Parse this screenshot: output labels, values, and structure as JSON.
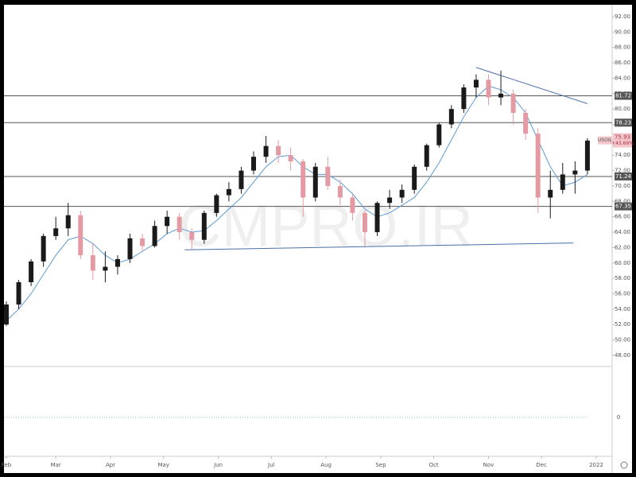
{
  "chart_data": {
    "type": "candlestick",
    "symbol": "USOIL",
    "change_label": "+43.69%",
    "last_price": 75.93,
    "watermark": "CMPRO.IR",
    "x": [
      0,
      7,
      14,
      21,
      28,
      35,
      42,
      49,
      56,
      63,
      70,
      77,
      84,
      91,
      98,
      105,
      112,
      119,
      126,
      133,
      140,
      147,
      154,
      161,
      168,
      175,
      182,
      189,
      196,
      203,
      210,
      217,
      224,
      231,
      238,
      245,
      252,
      259,
      266,
      273,
      280,
      287,
      294,
      301,
      308,
      315,
      322,
      329
    ],
    "open": [
      52,
      54.6,
      57.5,
      60.2,
      63.5,
      64.5,
      66.2,
      61,
      59,
      59.5,
      60.5,
      63.2,
      62.2,
      64.8,
      66,
      64,
      63,
      66.5,
      68.8,
      69.6,
      72,
      73.8,
      75.2,
      74,
      73.2,
      68.5,
      72.5,
      70,
      68.5,
      66.5,
      64,
      67.8,
      68.5,
      69.5,
      72.5,
      75.3,
      78,
      80,
      82.8,
      83.8,
      81.5,
      82,
      79.5,
      76.8,
      68.5,
      69.5,
      71.5,
      72
    ],
    "high": [
      55,
      57.8,
      60.5,
      63.8,
      66,
      67.8,
      66.8,
      62.5,
      61.5,
      61,
      63.8,
      63.8,
      65.5,
      66.8,
      66.5,
      64.5,
      66.8,
      69,
      70.5,
      72.5,
      74.5,
      76.5,
      76,
      75,
      73.5,
      73,
      73.8,
      70.8,
      69,
      66.8,
      68,
      69.5,
      70.2,
      72.8,
      75.5,
      78.2,
      80.5,
      83.2,
      84.5,
      84.5,
      85,
      82.5,
      80,
      77.5,
      72,
      73,
      73.2,
      76.2
    ],
    "low": [
      51.8,
      54,
      57,
      59.5,
      63,
      63.5,
      60.5,
      57.8,
      57.5,
      58.5,
      60,
      61.5,
      62,
      63.8,
      63,
      61.8,
      62.5,
      66,
      68,
      69,
      71.5,
      73,
      73,
      72,
      66,
      68,
      69.5,
      67.5,
      65.5,
      62,
      63.5,
      67,
      67.8,
      69,
      72,
      75,
      77.5,
      79.5,
      81.5,
      80.5,
      80.5,
      78,
      76,
      66.5,
      65.8,
      69,
      69,
      71.5
    ],
    "close": [
      54.6,
      57.5,
      60.2,
      63.5,
      64.5,
      66.2,
      61,
      59,
      59.5,
      60.5,
      63.2,
      62.2,
      64.8,
      66,
      64,
      63,
      66.5,
      68.8,
      69.6,
      72,
      73.8,
      75.2,
      74,
      73.2,
      68.5,
      72.5,
      70,
      68.5,
      66.5,
      64,
      67.8,
      68.5,
      69.5,
      72.5,
      75.3,
      78,
      80,
      82.8,
      83.8,
      81.5,
      82,
      79.5,
      76.8,
      68.5,
      69.5,
      71.5,
      72,
      75.9
    ],
    "up_color": "#1a1a1a",
    "down_color": "#e39aa3",
    "moving_average": {
      "color": "#5b9bd5",
      "values": [
        52.5,
        54,
        56,
        58.5,
        61,
        63,
        63.5,
        62.5,
        61,
        60,
        60.5,
        61.5,
        62.5,
        63.8,
        64.5,
        64,
        64.2,
        65.5,
        67,
        68.5,
        70.5,
        72.5,
        73.8,
        74,
        72.5,
        71.5,
        71.5,
        70.5,
        69,
        67,
        66,
        66.5,
        67.5,
        68.5,
        70.5,
        73,
        76,
        79,
        81.5,
        83,
        82.5,
        81.5,
        79.5,
        76,
        72.5,
        70,
        70.5,
        71.5
      ]
    },
    "levels": {
      "color": "#555555",
      "values": [
        81.72,
        78.23,
        71.24,
        67.35
      ]
    },
    "trendlines": [
      {
        "color": "#4a6fa5",
        "x": [
          266,
          329
        ],
        "values": [
          85.4,
          80.7
        ]
      },
      {
        "color": "#4a6fa5",
        "x": [
          101,
          321
        ],
        "values": [
          61.7,
          62.6
        ]
      }
    ],
    "xlim": [
      -1.35,
      343
    ],
    "xticks": [
      {
        "value": 0,
        "label": "Feb"
      },
      {
        "value": 28,
        "label": "Mar"
      },
      {
        "value": 59,
        "label": "Apr"
      },
      {
        "value": 89,
        "label": "May"
      },
      {
        "value": 120,
        "label": "Jun"
      },
      {
        "value": 150,
        "label": "Jul"
      },
      {
        "value": 181,
        "label": "Aug"
      },
      {
        "value": 212,
        "label": "Sep"
      },
      {
        "value": 242,
        "label": "Oct"
      },
      {
        "value": 273,
        "label": "Nov"
      },
      {
        "value": 303,
        "label": "Dec"
      },
      {
        "value": 334,
        "label": "2022"
      }
    ],
    "ylim": [
      46.65,
      93.34
    ],
    "yticks": [
      {
        "value": 48,
        "label": "48.00"
      },
      {
        "value": 50,
        "label": "50.00"
      },
      {
        "value": 52,
        "label": "52.00"
      },
      {
        "value": 54,
        "label": "54.00"
      },
      {
        "value": 56,
        "label": "56.00"
      },
      {
        "value": 58,
        "label": "58.00"
      },
      {
        "value": 60,
        "label": "60.00"
      },
      {
        "value": 62,
        "label": "62.00"
      },
      {
        "value": 64,
        "label": "64.00"
      },
      {
        "value": 66,
        "label": "66.00"
      },
      {
        "value": 68,
        "label": "68.00"
      },
      {
        "value": 70,
        "label": "70.00"
      },
      {
        "value": 72,
        "label": "72.00"
      },
      {
        "value": 74,
        "label": "74.00"
      },
      {
        "value": 76,
        "label": "76.00"
      },
      {
        "value": 78,
        "label": "78.00"
      },
      {
        "value": 80,
        "label": "80.00"
      },
      {
        "value": 82,
        "label": "82.00"
      },
      {
        "value": 84,
        "label": "84.00"
      },
      {
        "value": 86,
        "label": "86.00"
      },
      {
        "value": 88,
        "label": "88.00"
      },
      {
        "value": 90,
        "label": "90.00"
      },
      {
        "value": 92,
        "label": "92.00"
      }
    ],
    "lower_pane": {
      "yticks": [
        0
      ]
    }
  }
}
